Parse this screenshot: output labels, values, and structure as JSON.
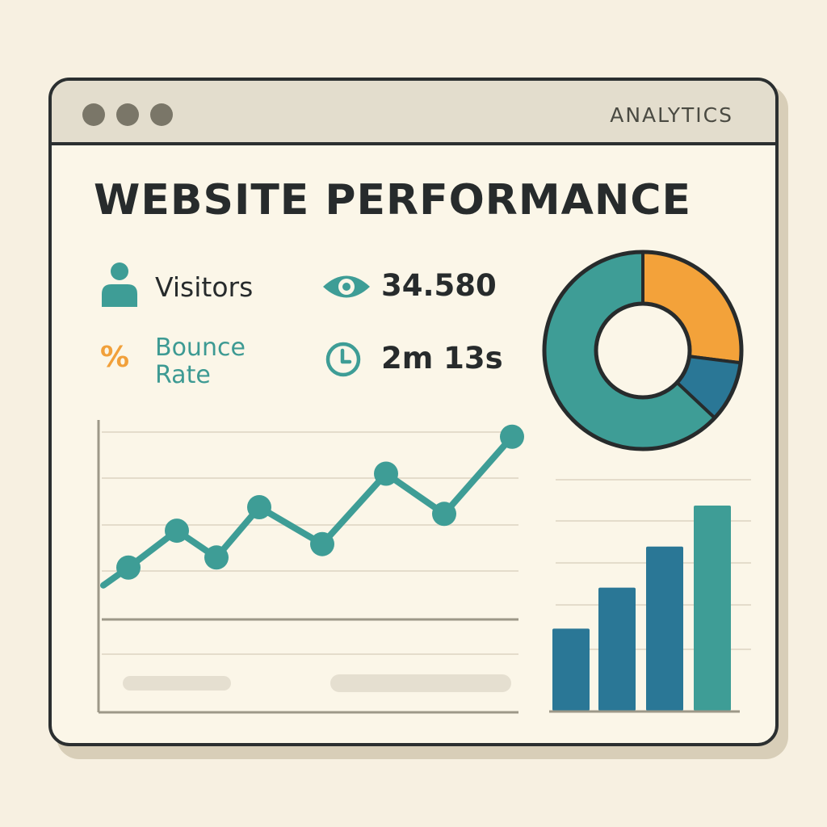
{
  "window": {
    "app_title": "ANALYTICS"
  },
  "page": {
    "title": "WEBSITE PERFORMANCE"
  },
  "stats": {
    "visitors_label": "Visitors",
    "views_value": "34.580",
    "bounce_label_line1": "Bounce",
    "bounce_label_line2": "Rate",
    "bounce_symbol": "%",
    "time_value": "2m 13s"
  },
  "icons": {
    "visitors": "user-icon",
    "views": "eye-icon",
    "bounce": "percent-icon",
    "time": "clock-icon"
  },
  "colors": {
    "teal": "#3e9d96",
    "dark_teal": "#2a7796",
    "orange": "#f3a23a",
    "text": "#272b2c",
    "background": "#f7f0e1"
  },
  "chart_data": [
    {
      "type": "line",
      "values": [
        2.1,
        3.2,
        2.4,
        3.9,
        2.8,
        4.9,
        3.7,
        6.0
      ],
      "ylim": [
        0,
        6.5
      ],
      "grid": true
    },
    {
      "type": "pie",
      "donut": true,
      "slices": [
        {
          "value": 0.27,
          "color": "#f3a23a"
        },
        {
          "value": 0.1,
          "color": "#2a7796"
        },
        {
          "value": 0.63,
          "color": "#3e9d96"
        }
      ]
    },
    {
      "type": "bar",
      "values": [
        2,
        3,
        4,
        5
      ],
      "colors": [
        "#2a7796",
        "#2a7796",
        "#2a7796",
        "#3e9d96"
      ],
      "ylim": [
        0,
        5
      ],
      "grid": true
    }
  ]
}
